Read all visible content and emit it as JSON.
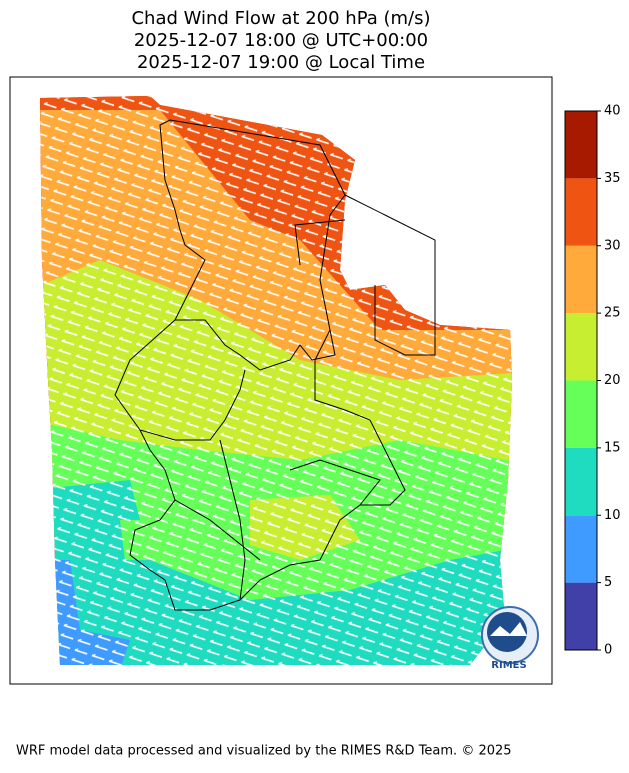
{
  "title": [
    "Chad Wind Flow at 200 hPa (m/s)",
    "2025-12-07 18:00 @ UTC+00:00",
    "2025-12-07 19:00 @ Local Time"
  ],
  "colorbar": {
    "ticks": [
      0,
      5,
      10,
      15,
      20,
      25,
      30,
      35,
      40
    ],
    "colors": [
      "#4040a8",
      "#3f9bff",
      "#1fdcc0",
      "#66ff5a",
      "#c8ee32",
      "#ffaa3a",
      "#f05412",
      "#a81a00"
    ]
  },
  "logo": "RIMES",
  "footer": "WRF model data processed and visualized by the RIMES R&D Team. © 2025"
}
